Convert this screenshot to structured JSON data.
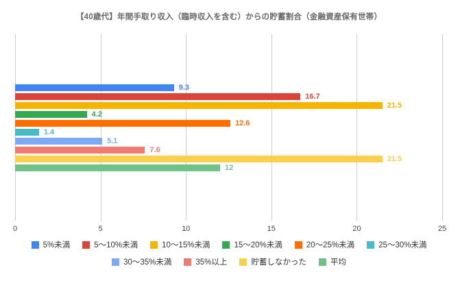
{
  "chart_data": {
    "type": "bar",
    "orientation": "horizontal",
    "title": "【40歳代】年間手取り収入（臨時収入を含む）からの貯蓄割合（金融資産保有世帯）",
    "xlabel": "",
    "ylabel": "",
    "xlim": [
      0,
      25
    ],
    "xticks": [
      0,
      5,
      10,
      15,
      20,
      25
    ],
    "grid": true,
    "legend_position": "bottom",
    "series": [
      {
        "name": "5%未満",
        "value": 9.3,
        "label": "9.3",
        "color": "#4285F4"
      },
      {
        "name": "5～10%未満",
        "value": 16.7,
        "label": "16.7",
        "color": "#DB4437"
      },
      {
        "name": "10～15%未満",
        "value": 21.5,
        "label": "21.5",
        "color": "#F4B400"
      },
      {
        "name": "15～20%未満",
        "value": 4.2,
        "label": "4.2",
        "color": "#34A853"
      },
      {
        "name": "20～25%未満",
        "value": 12.6,
        "label": "12.6",
        "color": "#FF6D01"
      },
      {
        "name": "25～30%未満",
        "value": 1.4,
        "label": "1.4",
        "color": "#46BDC6"
      },
      {
        "name": "30～35%未満",
        "value": 5.1,
        "label": "5.1",
        "color": "#7BAAF7"
      },
      {
        "name": "35%以上",
        "value": 7.6,
        "label": "7.6",
        "color": "#F07B72"
      },
      {
        "name": "貯蓄しなかった",
        "value": 21.5,
        "label": "21.5",
        "color": "#FCD04F"
      },
      {
        "name": "平均",
        "value": 12,
        "label": "12",
        "color": "#71C287"
      }
    ],
    "legend_rows": [
      [
        0,
        1,
        2,
        3,
        4,
        5
      ],
      [
        6,
        7,
        8,
        9
      ]
    ]
  }
}
